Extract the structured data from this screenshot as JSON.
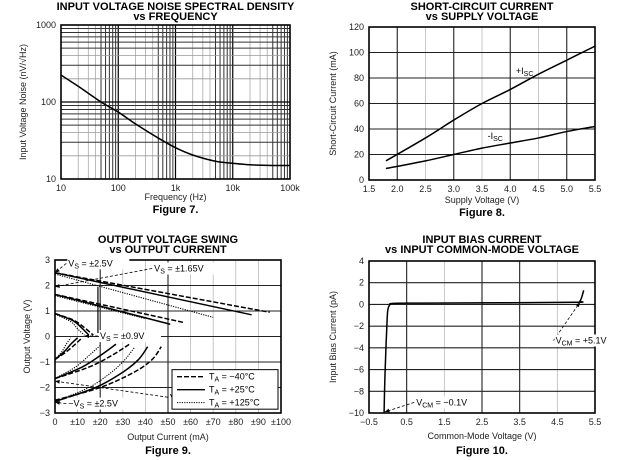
{
  "chart_data": [
    {
      "id": "fig7",
      "type": "line",
      "title": [
        "INPUT VOLTAGE NOISE SPECTRAL DENSITY",
        "vs FREQUENCY"
      ],
      "figure_label": "Figure 7.",
      "xlabel": "Frequency (Hz)",
      "ylabel": "Input Voltage Noise (nV/√Hz)",
      "xscale": "log",
      "yscale": "log",
      "xlim": [
        10,
        100000
      ],
      "ylim": [
        10,
        1000
      ],
      "xticks": [
        10,
        100,
        1000,
        10000,
        100000
      ],
      "xtick_labels": [
        "10",
        "100",
        "1k",
        "10k",
        "100k"
      ],
      "yticks": [
        10,
        100,
        1000
      ],
      "ytick_labels": [
        "10",
        "100",
        "1000"
      ],
      "grid": true,
      "series": [
        {
          "name": "Noise",
          "style": "solid",
          "x": [
            10,
            20,
            50,
            100,
            200,
            500,
            1000,
            2000,
            5000,
            10000,
            20000,
            50000,
            100000
          ],
          "y": [
            224,
            160,
            100,
            74,
            52,
            34,
            25.5,
            20.5,
            17,
            16,
            15.3,
            15,
            15
          ]
        }
      ]
    },
    {
      "id": "fig8",
      "type": "line",
      "title": [
        "SHORT-CIRCUIT CURRENT",
        "vs SUPPLY VOLTAGE"
      ],
      "figure_label": "Figure 8.",
      "xlabel": "Supply Voltage (V)",
      "ylabel": "Short-Circuit Current (mA)",
      "xlim": [
        1.5,
        5.5
      ],
      "ylim": [
        0,
        120
      ],
      "xticks": [
        1.5,
        2.0,
        2.5,
        3.0,
        3.5,
        4.0,
        4.5,
        5.0,
        5.5
      ],
      "xtick_labels": [
        "1.5",
        "2.0",
        "2.5",
        "3.0",
        "3.5",
        "4.0",
        "4.5",
        "5.0",
        "5.5"
      ],
      "yticks": [
        0,
        20,
        40,
        60,
        80,
        100,
        120
      ],
      "ytick_labels": [
        "0",
        "20",
        "40",
        "60",
        "80",
        "100",
        "120"
      ],
      "grid": true,
      "series": [
        {
          "name": "+ISC",
          "label_main": "+I",
          "label_sub": "SC",
          "style": "solid",
          "x": [
            1.8,
            2.5,
            3.0,
            3.5,
            4.0,
            4.5,
            5.0,
            5.5
          ],
          "y": [
            15,
            33,
            47,
            60,
            71,
            83,
            94,
            105
          ],
          "label_at": [
            4.1,
            83
          ]
        },
        {
          "name": "-ISC",
          "label_main": "-I",
          "label_sub": "SC",
          "style": "solid",
          "x": [
            1.8,
            2.5,
            3.0,
            3.5,
            4.0,
            4.5,
            5.0,
            5.5
          ],
          "y": [
            9,
            15,
            20,
            25,
            29,
            33,
            38,
            42
          ],
          "label_at": [
            3.6,
            32
          ]
        }
      ]
    },
    {
      "id": "fig9",
      "type": "line",
      "title": [
        "OUTPUT VOLTAGE SWING",
        "vs OUTPUT CURRENT"
      ],
      "figure_label": "Figure 9.",
      "xlabel": "Output Current (mA)",
      "ylabel": "Output Voltage (V)",
      "xlim": [
        0,
        100
      ],
      "ylim": [
        -3,
        3
      ],
      "xticks": [
        0,
        10,
        20,
        30,
        40,
        50,
        60,
        70,
        80,
        90,
        100
      ],
      "xtick_labels": [
        "0",
        "±10",
        "±20",
        "±30",
        "±40",
        "±50",
        "±60",
        "±70",
        "±80",
        "±90",
        "±100"
      ],
      "yticks": [
        -3,
        -2,
        -1,
        0,
        1,
        2,
        3
      ],
      "ytick_labels": [
        "−3",
        "−2",
        "−1",
        "0",
        "1",
        "2",
        "3"
      ],
      "grid": true,
      "legend": {
        "position": "bottom-right",
        "entries": [
          {
            "style": "dashed",
            "label_main": "T",
            "label_sub": "A",
            "label_rest": " = −40°C"
          },
          {
            "style": "solid",
            "label_main": "T",
            "label_sub": "A",
            "label_rest": " = +25°C"
          },
          {
            "style": "dotted",
            "label_main": "T",
            "label_sub": "A",
            "label_rest": " = +125°C"
          }
        ]
      },
      "series": [
        {
          "name": "+2.5V -40C",
          "style": "dashed",
          "x": [
            0,
            95
          ],
          "y": [
            2.5,
            0.95
          ]
        },
        {
          "name": "+2.5V +25C",
          "style": "solid",
          "x": [
            0,
            87
          ],
          "y": [
            2.5,
            0.85
          ]
        },
        {
          "name": "+2.5V +125C",
          "style": "dotted",
          "x": [
            0,
            70
          ],
          "y": [
            2.45,
            0.75
          ]
        },
        {
          "name": "+1.65V -40C",
          "style": "dashed",
          "x": [
            0,
            57
          ],
          "y": [
            1.65,
            0.55
          ]
        },
        {
          "name": "+1.65V +25C",
          "style": "solid",
          "x": [
            0,
            51
          ],
          "y": [
            1.65,
            0.48
          ]
        },
        {
          "name": "+1.65V +125C",
          "style": "dotted",
          "x": [
            0,
            40
          ],
          "y": [
            1.6,
            0.7
          ]
        },
        {
          "name": "+0.9V -40C",
          "style": "dashed",
          "x": [
            0,
            8,
            13,
            17
          ],
          "y": [
            0.9,
            0.65,
            0.35,
            0.05
          ]
        },
        {
          "name": "+0.9V +25C",
          "style": "solid",
          "x": [
            0,
            8,
            12,
            15
          ],
          "y": [
            0.9,
            0.62,
            0.32,
            0.05
          ]
        },
        {
          "name": "+0.9V +125C",
          "style": "dotted",
          "x": [
            0,
            7,
            10,
            13
          ],
          "y": [
            0.88,
            0.58,
            0.3,
            0.05
          ]
        },
        {
          "name": "-0.9V -40C",
          "style": "dashed",
          "x": [
            0,
            5,
            9,
            12
          ],
          "y": [
            -0.9,
            -0.6,
            -0.3,
            -0.05
          ]
        },
        {
          "name": "-0.9V +25C",
          "style": "solid",
          "x": [
            0,
            4,
            7,
            10
          ],
          "y": [
            -0.9,
            -0.6,
            -0.3,
            -0.05
          ]
        },
        {
          "name": "-0.9V +125C",
          "style": "dotted",
          "x": [
            0,
            3,
            5,
            7
          ],
          "y": [
            -0.9,
            -0.6,
            -0.3,
            -0.05
          ]
        },
        {
          "name": "-1.65V -40C",
          "style": "dashed",
          "x": [
            0,
            15,
            25,
            33
          ],
          "y": [
            -1.65,
            -1.2,
            -0.75,
            -0.3
          ]
        },
        {
          "name": "-1.65V +25C",
          "style": "solid",
          "x": [
            0,
            12,
            20,
            27
          ],
          "y": [
            -1.65,
            -1.2,
            -0.75,
            -0.3
          ]
        },
        {
          "name": "-1.65V +125C",
          "style": "dotted",
          "x": [
            0,
            9,
            15,
            20
          ],
          "y": [
            -1.65,
            -1.2,
            -0.75,
            -0.35
          ]
        },
        {
          "name": "-2.5V -40C",
          "style": "dashed",
          "x": [
            0,
            20,
            35,
            43,
            47
          ],
          "y": [
            -2.5,
            -2.0,
            -1.4,
            -0.9,
            -0.4
          ]
        },
        {
          "name": "-2.5V +25C",
          "style": "solid",
          "x": [
            0,
            18,
            30,
            37,
            41
          ],
          "y": [
            -2.55,
            -2.0,
            -1.4,
            -0.9,
            -0.4
          ]
        },
        {
          "name": "-2.5V +125C",
          "style": "dotted",
          "x": [
            0,
            15,
            25,
            31,
            35
          ],
          "y": [
            -2.55,
            -2.0,
            -1.4,
            -0.9,
            -0.45
          ]
        }
      ],
      "annotations": [
        {
          "text_main": "V",
          "text_sub": "S",
          "text_rest": " = ±2.5V",
          "at": [
            5,
            2.75
          ],
          "arrow_to": [
            0,
            2.5
          ]
        },
        {
          "text_main": "V",
          "text_sub": "S",
          "text_rest": " = ±1.65V",
          "at": [
            43,
            2.55
          ],
          "arrow_to": [
            0,
            1.95
          ]
        },
        {
          "text_main": "V",
          "text_sub": "S",
          "text_rest": " = ±0.9V",
          "at": [
            19,
            -0.1
          ],
          "arrow_to": [
            13,
            0.02
          ],
          "line_to": [
            19,
            1.95
          ]
        },
        {
          "text_main": "−V",
          "text_sub": "S",
          "text_rest": " = ±2.5V",
          "at": [
            5,
            -2.75
          ],
          "arrow_to": [
            0,
            -2.58
          ]
        },
        {
          "text_main": "V",
          "text_sub": "S",
          "text_rest": " = ±1.65V",
          "at": [
            50,
            -2.5
          ],
          "arrow_to": [
            0,
            -1.75
          ]
        }
      ]
    },
    {
      "id": "fig10",
      "type": "line",
      "title": [
        "INPUT BIAS CURRENT",
        "vs INPUT COMMON-MODE VOLTAGE"
      ],
      "figure_label": "Figure 10.",
      "xlabel": "Common-Mode Voltage (V)",
      "ylabel": "Input Bias Current (pA)",
      "xlim": [
        -0.5,
        5.5
      ],
      "ylim": [
        -10,
        4
      ],
      "xticks": [
        -0.5,
        0.5,
        1.5,
        2.5,
        3.5,
        4.5,
        5.5
      ],
      "xtick_labels": [
        "−0.5",
        "0.5",
        "1.5",
        "2.5",
        "3.5",
        "4.5",
        "5.5"
      ],
      "yticks": [
        -10,
        -8,
        -6,
        -4,
        -2,
        0,
        2,
        4
      ],
      "ytick_labels": [
        "−10",
        "−8",
        "−6",
        "−4",
        "−2",
        "0",
        "2",
        "4"
      ],
      "grid": true,
      "series": [
        {
          "name": "IB",
          "style": "solid",
          "x": [
            -0.1,
            -0.08,
            -0.05,
            -0.02,
            0.0,
            0.05,
            0.15,
            1.0,
            3.0,
            5.0,
            5.1,
            5.15,
            5.2
          ],
          "y": [
            -10,
            -7,
            -4,
            -1.5,
            -0.5,
            -0.05,
            0.1,
            0.12,
            0.15,
            0.2,
            0.3,
            0.7,
            1.3
          ]
        }
      ],
      "annotations": [
        {
          "text_main": "V",
          "text_sub": "CM",
          "text_rest": " = +5.1V",
          "at": [
            4.4,
            -3.6
          ],
          "arrow_to": [
            5.1,
            0.2
          ]
        },
        {
          "text_main": "V",
          "text_sub": "CM",
          "text_rest": " = −0.1V",
          "at": [
            0.7,
            -9.3
          ],
          "arrow_to": [
            -0.08,
            -9.9
          ]
        }
      ]
    }
  ]
}
